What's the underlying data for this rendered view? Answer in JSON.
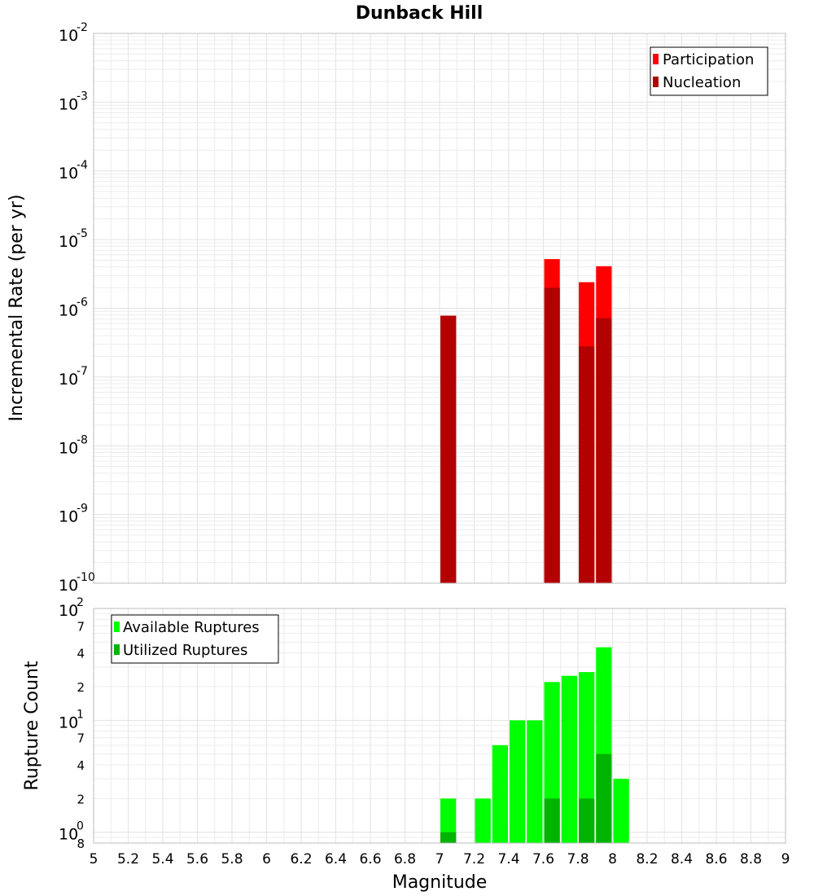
{
  "chart_data": {
    "title": "Dunback Hill",
    "xlabel": "Magnitude",
    "xlim": [
      5,
      9
    ],
    "x_ticks": [
      "5",
      "5.2",
      "5.4",
      "5.6",
      "5.8",
      "6",
      "6.2",
      "6.4",
      "6.6",
      "6.8",
      "7",
      "7.2",
      "7.4",
      "7.6",
      "7.8",
      "8",
      "8.2",
      "8.4",
      "8.6",
      "8.8",
      "9"
    ],
    "bin_width": 0.1,
    "panels": [
      {
        "type": "bar",
        "ylabel": "Incremental Rate (per yr)",
        "yscale": "log",
        "ylim": [
          1e-10,
          0.01
        ],
        "y_ticks": [
          {
            "base": "10",
            "exp": "-2"
          },
          {
            "base": "10",
            "exp": "-3"
          },
          {
            "base": "10",
            "exp": "-4"
          },
          {
            "base": "10",
            "exp": "-5"
          },
          {
            "base": "10",
            "exp": "-6"
          },
          {
            "base": "10",
            "exp": "-7"
          },
          {
            "base": "10",
            "exp": "-8"
          },
          {
            "base": "10",
            "exp": "-9"
          },
          {
            "base": "10",
            "exp": "-10"
          }
        ],
        "legend": {
          "placement": "top-right",
          "entries": [
            "Participation",
            "Nucleation"
          ]
        },
        "series": [
          {
            "name": "Participation",
            "color": "#ff0000",
            "points": [
              [
                7.05,
                7.8e-07
              ],
              [
                7.65,
                5.2e-06
              ],
              [
                7.85,
                2.4e-06
              ],
              [
                7.95,
                4.1e-06
              ]
            ]
          },
          {
            "name": "Nucleation",
            "color": "#b30000",
            "points": [
              [
                7.05,
                7.8e-07
              ],
              [
                7.65,
                2e-06
              ],
              [
                7.85,
                2.8e-07
              ],
              [
                7.95,
                7.2e-07
              ]
            ]
          }
        ]
      },
      {
        "type": "bar",
        "ylabel": "Rupture Count",
        "yscale": "log",
        "ylim": [
          0.8,
          100
        ],
        "y_ticks": [
          {
            "base": "10",
            "exp": "2"
          },
          {
            "base": "10",
            "exp": "1"
          },
          {
            "base": "10",
            "exp": "0"
          }
        ],
        "y_minor_ticks": [
          "7",
          "4",
          "2",
          "7",
          "4",
          "2",
          "8"
        ],
        "legend": {
          "placement": "top-left",
          "entries": [
            "Available Ruptures",
            "Utilized Ruptures"
          ]
        },
        "series": [
          {
            "name": "Available Ruptures",
            "color": "#00ff00",
            "points": [
              [
                7.05,
                2
              ],
              [
                7.25,
                2
              ],
              [
                7.35,
                6
              ],
              [
                7.45,
                10
              ],
              [
                7.55,
                10
              ],
              [
                7.65,
                22
              ],
              [
                7.75,
                25
              ],
              [
                7.85,
                27
              ],
              [
                7.95,
                45
              ],
              [
                8.05,
                3
              ]
            ]
          },
          {
            "name": "Utilized Ruptures",
            "color": "#00b300",
            "points": [
              [
                7.05,
                1
              ],
              [
                7.65,
                2
              ],
              [
                7.85,
                2
              ],
              [
                7.95,
                5
              ]
            ]
          }
        ]
      }
    ]
  }
}
